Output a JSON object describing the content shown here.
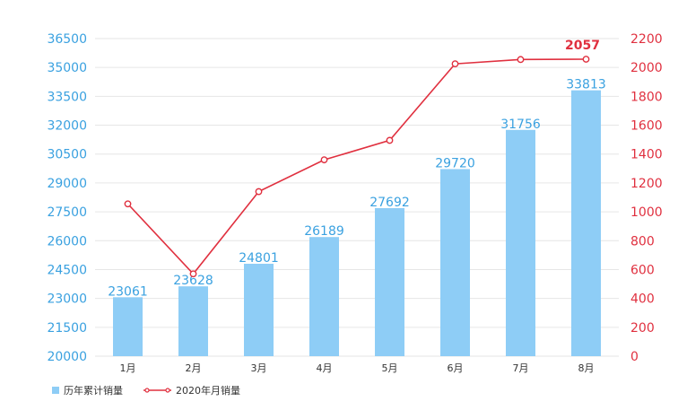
{
  "chart_data": {
    "type": "bar+line",
    "categories": [
      "1月",
      "2月",
      "3月",
      "4月",
      "5月",
      "6月",
      "7月",
      "8月"
    ],
    "series": [
      {
        "name": "历年累计销量",
        "type": "bar",
        "axis": "left",
        "color": "#8ecdf6",
        "values": [
          23061,
          23628,
          24801,
          26189,
          27692,
          29720,
          31756,
          33813
        ],
        "labels": [
          "23061",
          "23628",
          "24801",
          "26189",
          "27692",
          "29720",
          "31756",
          "33813"
        ]
      },
      {
        "name": "2020年月销量",
        "type": "line",
        "axis": "right",
        "color": "#e0303f",
        "values": [
          1055,
          570,
          1140,
          1360,
          1495,
          2025,
          2055,
          2057
        ],
        "labels": [
          "",
          "",
          "",
          "",
          "",
          "",
          "",
          "2057"
        ]
      }
    ],
    "y_left": {
      "ylim": [
        20000,
        36500
      ],
      "ticks": [
        "36500",
        "35000",
        "33500",
        "32000",
        "30500",
        "29000",
        "27500",
        "26000",
        "24500",
        "23000",
        "21500",
        "20000"
      ]
    },
    "y_right": {
      "ylim": [
        0,
        2200
      ],
      "ticks": [
        "2200",
        "2000",
        "1800",
        "1600",
        "1400",
        "1200",
        "1000",
        "800",
        "600",
        "400",
        "200",
        "0"
      ]
    },
    "grid": true,
    "legend": "bottom-left"
  }
}
